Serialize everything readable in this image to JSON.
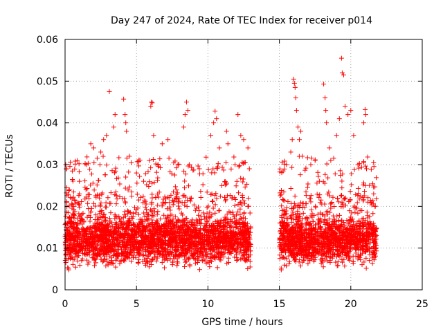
{
  "chart_data": {
    "type": "scatter",
    "title": "Day 247 of 2024, Rate Of TEC Index for receiver p014",
    "xlabel": "GPS time / hours",
    "ylabel": "ROTI / TECUs",
    "xlim": [
      0,
      25
    ],
    "ylim": [
      0,
      0.06
    ],
    "x_ticks": [
      0,
      5,
      10,
      15,
      20,
      25
    ],
    "y_ticks": [
      0,
      0.01,
      0.02,
      0.03,
      0.04,
      0.05,
      0.06
    ],
    "x_tick_labels": [
      "0",
      "5",
      "10",
      "15",
      "20",
      "25"
    ],
    "y_tick_labels": [
      "0",
      "0.01",
      "0.02",
      "0.03",
      "0.04",
      "0.05",
      "0.06"
    ],
    "grid": true,
    "marker": "+",
    "color": "#ff0000",
    "coverage_segments": [
      [
        0.0,
        13.0
      ],
      [
        15.0,
        21.8
      ]
    ],
    "series": [
      {
        "name": "ROTI",
        "points": [
          [
            0.05,
            0.03
          ],
          [
            0.1,
            0.029
          ],
          [
            0.3,
            0.024
          ],
          [
            0.6,
            0.02
          ],
          [
            1.0,
            0.023
          ],
          [
            1.5,
            0.03
          ],
          [
            1.8,
            0.035
          ],
          [
            2.0,
            0.034
          ],
          [
            2.5,
            0.033
          ],
          [
            2.7,
            0.036
          ],
          [
            2.9,
            0.037
          ],
          [
            3.1,
            0.0475
          ],
          [
            3.4,
            0.039
          ],
          [
            3.5,
            0.042
          ],
          [
            4.1,
            0.0457
          ],
          [
            4.2,
            0.042
          ],
          [
            4.25,
            0.04
          ],
          [
            4.3,
            0.038
          ],
          [
            4.5,
            0.032
          ],
          [
            5.0,
            0.028
          ],
          [
            5.5,
            0.026
          ],
          [
            5.9,
            0.031
          ],
          [
            6.0,
            0.044
          ],
          [
            6.05,
            0.045
          ],
          [
            6.1,
            0.0448
          ],
          [
            6.2,
            0.037
          ],
          [
            6.8,
            0.035
          ],
          [
            7.2,
            0.036
          ],
          [
            7.9,
            0.03
          ],
          [
            8.3,
            0.039
          ],
          [
            8.4,
            0.042
          ],
          [
            8.5,
            0.045
          ],
          [
            8.6,
            0.043
          ],
          [
            8.7,
            0.03
          ],
          [
            9.4,
            0.029
          ],
          [
            10.2,
            0.037
          ],
          [
            10.4,
            0.04
          ],
          [
            10.5,
            0.0428
          ],
          [
            10.6,
            0.041
          ],
          [
            10.8,
            0.034
          ],
          [
            11.3,
            0.038
          ],
          [
            11.4,
            0.035
          ],
          [
            11.9,
            0.03
          ],
          [
            12.1,
            0.042
          ],
          [
            12.3,
            0.037
          ],
          [
            12.5,
            0.036
          ],
          [
            12.8,
            0.034
          ],
          [
            12.9,
            0.029
          ],
          [
            15.2,
            0.019
          ],
          [
            15.5,
            0.03
          ],
          [
            15.8,
            0.033
          ],
          [
            15.9,
            0.036
          ],
          [
            16.0,
            0.0505
          ],
          [
            16.05,
            0.0495
          ],
          [
            16.1,
            0.0485
          ],
          [
            16.15,
            0.046
          ],
          [
            16.2,
            0.043
          ],
          [
            16.3,
            0.039
          ],
          [
            16.4,
            0.036
          ],
          [
            16.5,
            0.038
          ],
          [
            16.6,
            0.032
          ],
          [
            17.2,
            0.03
          ],
          [
            17.8,
            0.026
          ],
          [
            18.1,
            0.0493
          ],
          [
            18.2,
            0.046
          ],
          [
            18.25,
            0.043
          ],
          [
            18.3,
            0.04
          ],
          [
            18.5,
            0.034
          ],
          [
            18.6,
            0.031
          ],
          [
            19.0,
            0.037
          ],
          [
            19.2,
            0.041
          ],
          [
            19.35,
            0.0555
          ],
          [
            19.4,
            0.052
          ],
          [
            19.5,
            0.0515
          ],
          [
            19.6,
            0.044
          ],
          [
            19.8,
            0.042
          ],
          [
            20.0,
            0.043
          ],
          [
            20.2,
            0.037
          ],
          [
            20.5,
            0.03
          ],
          [
            20.9,
            0.04
          ],
          [
            21.0,
            0.0432
          ],
          [
            21.05,
            0.042
          ],
          [
            21.1,
            0.029
          ],
          [
            21.3,
            0.025
          ],
          [
            21.6,
            0.023
          ]
        ]
      }
    ]
  }
}
